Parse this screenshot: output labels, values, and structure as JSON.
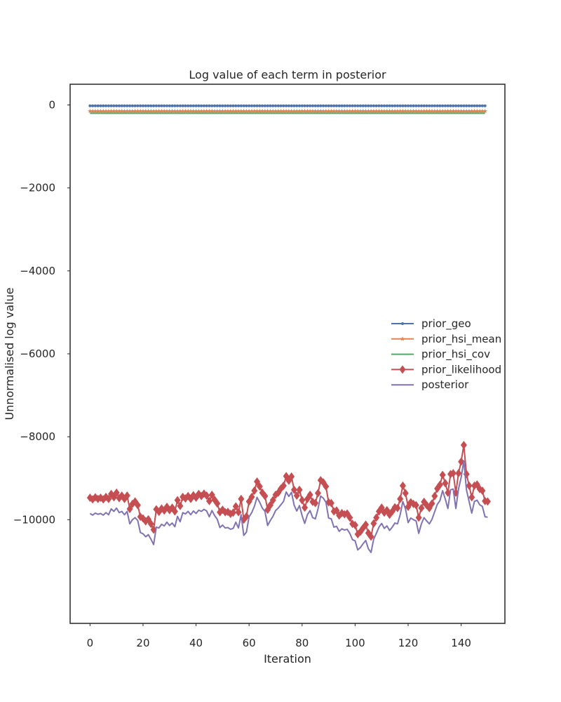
{
  "chart_data": {
    "type": "line",
    "title": "Log value of each term in posterior",
    "xlabel": "Iteration",
    "ylabel": "Unnormalised log value",
    "xlim": [
      -7.5,
      156.5
    ],
    "ylim": [
      -12500,
      500
    ],
    "xticks": [
      0,
      20,
      40,
      60,
      80,
      100,
      120,
      140
    ],
    "yticks": [
      0,
      -2000,
      -4000,
      -6000,
      -8000,
      -10000
    ],
    "ytick_labels": [
      "0",
      "−2000",
      "−4000",
      "−6000",
      "−8000",
      "−10000"
    ],
    "grid": false,
    "legend_position": "center-right",
    "x_start": 0,
    "series": [
      {
        "name": "prior_geo",
        "color": "#4c72b0",
        "marker": "point",
        "values": [
          -20,
          -20,
          -20,
          -20,
          -20,
          -20,
          -20,
          -20,
          -20,
          -20,
          -20,
          -20,
          -20,
          -20,
          -20,
          -20,
          -20,
          -20,
          -20,
          -20,
          -20,
          -20,
          -20,
          -20,
          -20,
          -20,
          -20,
          -20,
          -20,
          -20,
          -20,
          -20,
          -20,
          -20,
          -20,
          -20,
          -20,
          -20,
          -20,
          -20,
          -20,
          -20,
          -20,
          -20,
          -20,
          -20,
          -20,
          -20,
          -20,
          -20,
          -20,
          -20,
          -20,
          -20,
          -20,
          -20,
          -20,
          -20,
          -20,
          -20,
          -20,
          -20,
          -20,
          -20,
          -20,
          -20,
          -20,
          -20,
          -20,
          -20,
          -20,
          -20,
          -20,
          -20,
          -20,
          -20,
          -20,
          -20,
          -20,
          -20,
          -20,
          -20,
          -20,
          -20,
          -20,
          -20,
          -20,
          -20,
          -20,
          -20,
          -20,
          -20,
          -20,
          -20,
          -20,
          -20,
          -20,
          -20,
          -20,
          -20,
          -20,
          -20,
          -20,
          -20,
          -20,
          -20,
          -20,
          -20,
          -20,
          -20,
          -20,
          -20,
          -20,
          -20,
          -20,
          -20,
          -20,
          -20,
          -20,
          -20,
          -20,
          -20,
          -20,
          -20,
          -20,
          -20,
          -20,
          -20,
          -20,
          -20,
          -20,
          -20,
          -20,
          -20,
          -20,
          -20,
          -20,
          -20,
          -20,
          -20,
          -20,
          -20,
          -20,
          -20,
          -20,
          -20,
          -20,
          -20,
          -20,
          -20
        ]
      },
      {
        "name": "prior_hsi_mean",
        "color": "#dd8452",
        "marker": "star",
        "values": [
          -150,
          -150,
          -150,
          -150,
          -150,
          -150,
          -150,
          -150,
          -150,
          -150,
          -150,
          -150,
          -150,
          -150,
          -150,
          -150,
          -150,
          -150,
          -150,
          -150,
          -150,
          -150,
          -150,
          -150,
          -150,
          -150,
          -150,
          -150,
          -150,
          -150,
          -150,
          -150,
          -150,
          -150,
          -150,
          -150,
          -150,
          -150,
          -150,
          -150,
          -150,
          -150,
          -150,
          -150,
          -150,
          -150,
          -150,
          -150,
          -150,
          -150,
          -150,
          -150,
          -150,
          -150,
          -150,
          -150,
          -150,
          -150,
          -150,
          -150,
          -150,
          -150,
          -150,
          -150,
          -150,
          -150,
          -150,
          -150,
          -150,
          -150,
          -150,
          -150,
          -150,
          -150,
          -150,
          -150,
          -150,
          -150,
          -150,
          -150,
          -150,
          -150,
          -150,
          -150,
          -150,
          -150,
          -150,
          -150,
          -150,
          -150,
          -150,
          -150,
          -150,
          -150,
          -150,
          -150,
          -150,
          -150,
          -150,
          -150,
          -150,
          -150,
          -150,
          -150,
          -150,
          -150,
          -150,
          -150,
          -150,
          -150,
          -150,
          -150,
          -150,
          -150,
          -150,
          -150,
          -150,
          -150,
          -150,
          -150,
          -150,
          -150,
          -150,
          -150,
          -150,
          -150,
          -150,
          -150,
          -150,
          -150,
          -150,
          -150,
          -150,
          -150,
          -150,
          -150,
          -150,
          -150,
          -150,
          -150,
          -150,
          -150,
          -150,
          -150,
          -150,
          -150,
          -150,
          -150,
          -150,
          -150
        ]
      },
      {
        "name": "prior_hsi_cov",
        "color": "#55a868",
        "marker": "none",
        "values": [
          -200,
          -200,
          -200,
          -200,
          -200,
          -200,
          -200,
          -200,
          -200,
          -200,
          -200,
          -200,
          -200,
          -200,
          -200,
          -200,
          -200,
          -200,
          -200,
          -200,
          -200,
          -200,
          -200,
          -200,
          -200,
          -200,
          -200,
          -200,
          -200,
          -200,
          -200,
          -200,
          -200,
          -200,
          -200,
          -200,
          -200,
          -200,
          -200,
          -200,
          -200,
          -200,
          -200,
          -200,
          -200,
          -200,
          -200,
          -200,
          -200,
          -200,
          -200,
          -200,
          -200,
          -200,
          -200,
          -200,
          -200,
          -200,
          -200,
          -200,
          -200,
          -200,
          -200,
          -200,
          -200,
          -200,
          -200,
          -200,
          -200,
          -200,
          -200,
          -200,
          -200,
          -200,
          -200,
          -200,
          -200,
          -200,
          -200,
          -200,
          -200,
          -200,
          -200,
          -200,
          -200,
          -200,
          -200,
          -200,
          -200,
          -200,
          -200,
          -200,
          -200,
          -200,
          -200,
          -200,
          -200,
          -200,
          -200,
          -200,
          -200,
          -200,
          -200,
          -200,
          -200,
          -200,
          -200,
          -200,
          -200,
          -200,
          -200,
          -200,
          -200,
          -200,
          -200,
          -200,
          -200,
          -200,
          -200,
          -200,
          -200,
          -200,
          -200,
          -200,
          -200,
          -200,
          -200,
          -200,
          -200,
          -200,
          -200,
          -200,
          -200,
          -200,
          -200,
          -200,
          -200,
          -200,
          -200,
          -200,
          -200,
          -200,
          -200,
          -200,
          -200,
          -200,
          -200,
          -200,
          -200,
          -200
        ]
      },
      {
        "name": "prior_likelihood",
        "color": "#c44e52",
        "marker": "diamond",
        "values": [
          -9470,
          -9510,
          -9460,
          -9500,
          -9470,
          -9510,
          -9450,
          -9500,
          -9380,
          -9460,
          -9350,
          -9480,
          -9420,
          -9500,
          -9420,
          -9740,
          -9620,
          -9560,
          -9650,
          -9930,
          -9970,
          -10040,
          -9990,
          -10100,
          -10240,
          -9750,
          -9810,
          -9730,
          -9780,
          -9690,
          -9770,
          -9710,
          -9800,
          -9530,
          -9670,
          -9450,
          -9490,
          -9430,
          -9500,
          -9410,
          -9470,
          -9380,
          -9430,
          -9370,
          -9420,
          -9550,
          -9400,
          -9520,
          -9610,
          -9820,
          -9760,
          -9820,
          -9810,
          -9860,
          -9830,
          -9680,
          -9820,
          -9500,
          -10000,
          -9920,
          -9560,
          -9450,
          -9300,
          -9080,
          -9200,
          -9350,
          -9430,
          -9760,
          -9650,
          -9530,
          -9400,
          -9350,
          -9250,
          -9180,
          -8950,
          -9060,
          -8960,
          -9280,
          -9420,
          -9280,
          -9530,
          -9710,
          -9500,
          -9400,
          -9570,
          -9600,
          -9360,
          -9050,
          -9100,
          -9200,
          -9580,
          -9600,
          -9800,
          -9780,
          -9900,
          -9840,
          -9870,
          -9850,
          -9950,
          -10100,
          -10130,
          -10350,
          -10290,
          -10200,
          -10120,
          -10320,
          -10410,
          -10090,
          -9950,
          -9800,
          -9710,
          -9830,
          -9770,
          -9880,
          -9800,
          -9700,
          -9720,
          -9500,
          -9180,
          -9360,
          -9690,
          -9580,
          -9620,
          -9650,
          -9950,
          -9720,
          -9570,
          -9650,
          -9720,
          -9610,
          -9430,
          -9250,
          -9160,
          -8920,
          -9120,
          -9350,
          -8900,
          -8880,
          -9350,
          -8880,
          -8600,
          -8200,
          -8900,
          -9180,
          -9460,
          -9180,
          -9150,
          -9260,
          -9300,
          -9550,
          -9560
        ]
      },
      {
        "name": "posterior",
        "color": "#8172b2",
        "marker": "none",
        "values": [
          -9850,
          -9890,
          -9840,
          -9870,
          -9850,
          -9890,
          -9830,
          -9880,
          -9740,
          -9800,
          -9720,
          -9830,
          -9800,
          -9880,
          -9800,
          -10100,
          -10000,
          -9950,
          -10020,
          -10310,
          -10340,
          -10410,
          -10360,
          -10470,
          -10600,
          -10180,
          -10200,
          -10110,
          -10150,
          -10060,
          -10140,
          -10080,
          -10170,
          -9920,
          -10050,
          -9830,
          -9860,
          -9800,
          -9880,
          -9790,
          -9850,
          -9770,
          -9800,
          -9750,
          -9790,
          -9930,
          -9780,
          -9900,
          -9990,
          -10190,
          -10130,
          -10200,
          -10190,
          -10230,
          -10210,
          -10060,
          -10200,
          -9880,
          -10380,
          -10300,
          -9930,
          -9830,
          -9680,
          -9460,
          -9580,
          -9720,
          -9800,
          -10140,
          -10020,
          -9920,
          -9780,
          -9720,
          -9640,
          -9560,
          -9330,
          -9440,
          -9340,
          -9650,
          -9790,
          -9660,
          -9900,
          -10090,
          -9880,
          -9780,
          -9950,
          -9980,
          -9740,
          -9430,
          -9480,
          -9580,
          -9960,
          -9980,
          -10180,
          -10160,
          -10280,
          -10220,
          -10250,
          -10230,
          -10330,
          -10480,
          -10510,
          -10730,
          -10670,
          -10580,
          -10500,
          -10700,
          -10790,
          -10470,
          -10330,
          -10180,
          -10090,
          -10210,
          -10150,
          -10260,
          -10180,
          -10080,
          -10100,
          -9880,
          -9560,
          -9740,
          -10070,
          -9960,
          -10000,
          -10030,
          -10330,
          -10100,
          -9950,
          -10030,
          -10100,
          -9990,
          -9810,
          -9630,
          -9540,
          -9300,
          -9500,
          -9730,
          -9280,
          -9260,
          -9730,
          -9260,
          -8980,
          -8580,
          -9280,
          -9560,
          -9840,
          -9560,
          -9530,
          -9640,
          -9680,
          -9930,
          -9940
        ]
      }
    ]
  }
}
